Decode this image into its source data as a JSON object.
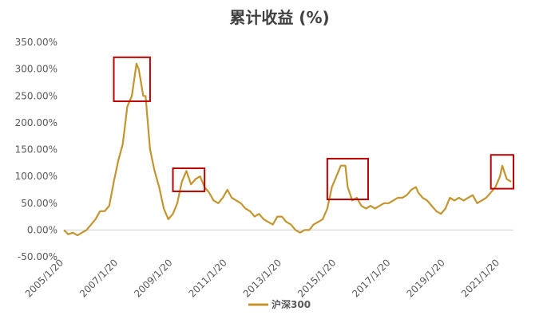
{
  "chart_data": {
    "type": "line",
    "title": "累计收益 (%)",
    "xlabel": "",
    "ylabel": "",
    "y_ticks": [
      "350.00%",
      "300.00%",
      "250.00%",
      "200.00%",
      "150.00%",
      "100.00%",
      "50.00%",
      "0.00%",
      "-50.00%"
    ],
    "ylim": [
      -50,
      350
    ],
    "x_ticks": [
      "2005/1/20",
      "2007/1/20",
      "2009/1/20",
      "2011/1/20",
      "2013/1/20",
      "2015/1/20",
      "2017/1/20",
      "2019/1/20",
      "2021/1/20"
    ],
    "xlim": [
      "2005/1/20",
      "2021/7/20"
    ],
    "grid": false,
    "legend_position": "bottom",
    "series": [
      {
        "name": "沪深300",
        "color": "#c4952f",
        "x": [
          "2005/1/20",
          "2005/3/20",
          "2005/5/20",
          "2005/7/20",
          "2005/9/20",
          "2005/11/20",
          "2006/1/20",
          "2006/3/20",
          "2006/5/20",
          "2006/7/20",
          "2006/9/20",
          "2006/11/20",
          "2007/1/20",
          "2007/3/20",
          "2007/5/20",
          "2007/7/20",
          "2007/9/20",
          "2007/10/20",
          "2007/12/20",
          "2008/1/20",
          "2008/3/20",
          "2008/5/20",
          "2008/7/20",
          "2008/9/20",
          "2008/11/20",
          "2009/1/20",
          "2009/3/20",
          "2009/5/20",
          "2009/7/20",
          "2009/9/20",
          "2009/11/20",
          "2010/1/20",
          "2010/3/20",
          "2010/5/20",
          "2010/7/20",
          "2010/9/20",
          "2010/11/20",
          "2011/1/20",
          "2011/3/20",
          "2011/5/20",
          "2011/7/20",
          "2011/9/20",
          "2011/11/20",
          "2012/1/20",
          "2012/3/20",
          "2012/5/20",
          "2012/7/20",
          "2012/9/20",
          "2012/11/20",
          "2013/1/20",
          "2013/3/20",
          "2013/5/20",
          "2013/7/20",
          "2013/9/20",
          "2013/11/20",
          "2014/1/20",
          "2014/3/20",
          "2014/5/20",
          "2014/7/20",
          "2014/9/20",
          "2014/11/20",
          "2015/1/20",
          "2015/3/20",
          "2015/5/20",
          "2015/6/20",
          "2015/8/20",
          "2015/10/20",
          "2015/12/20",
          "2016/2/20",
          "2016/4/20",
          "2016/6/20",
          "2016/8/20",
          "2016/10/20",
          "2016/12/20",
          "2017/2/20",
          "2017/4/20",
          "2017/6/20",
          "2017/8/20",
          "2017/10/20",
          "2017/12/20",
          "2018/1/20",
          "2018/3/20",
          "2018/5/20",
          "2018/7/20",
          "2018/9/20",
          "2018/11/20",
          "2019/1/20",
          "2019/3/20",
          "2019/5/20",
          "2019/7/20",
          "2019/9/20",
          "2019/11/20",
          "2020/1/20",
          "2020/3/20",
          "2020/5/20",
          "2020/7/20",
          "2020/9/20",
          "2020/11/20",
          "2021/1/20",
          "2021/2/20",
          "2021/4/20",
          "2021/6/20"
        ],
        "values": [
          0,
          -8,
          -5,
          -10,
          -5,
          0,
          10,
          20,
          35,
          35,
          45,
          90,
          130,
          160,
          230,
          250,
          310,
          300,
          250,
          250,
          150,
          110,
          80,
          40,
          20,
          30,
          50,
          90,
          110,
          85,
          95,
          100,
          80,
          70,
          55,
          50,
          60,
          75,
          60,
          55,
          50,
          40,
          35,
          25,
          30,
          20,
          15,
          10,
          25,
          25,
          15,
          10,
          0,
          -5,
          0,
          0,
          10,
          15,
          20,
          40,
          80,
          100,
          120,
          120,
          80,
          55,
          60,
          45,
          40,
          45,
          40,
          45,
          50,
          50,
          55,
          60,
          60,
          65,
          75,
          80,
          70,
          60,
          55,
          45,
          35,
          30,
          40,
          60,
          55,
          60,
          55,
          60,
          65,
          50,
          55,
          60,
          70,
          80,
          100,
          120,
          95,
          90
        ]
      }
    ],
    "highlights": [
      {
        "x_from": "2006/11/20",
        "x_to": "2008/3/20",
        "y_from": 240,
        "y_to": 322
      },
      {
        "x_from": "2009/1/20",
        "x_to": "2010/3/20",
        "y_from": 72,
        "y_to": 115
      },
      {
        "x_from": "2014/9/20",
        "x_to": "2016/3/20",
        "y_from": 57,
        "y_to": 133
      },
      {
        "x_from": "2020/9/20",
        "x_to": "2021/7/20",
        "y_from": 77,
        "y_to": 140
      }
    ],
    "highlight_color": "#c00000"
  }
}
